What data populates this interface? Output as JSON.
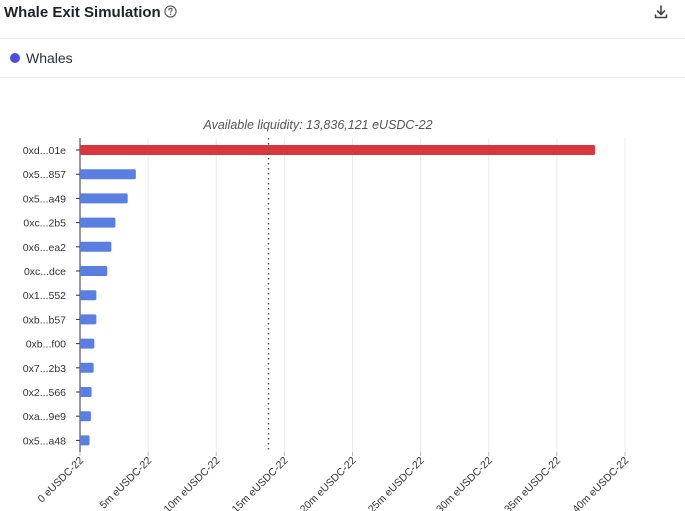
{
  "header": {
    "title": "Whale Exit Simulation",
    "help_icon": "question-circle-icon",
    "download_icon": "download-icon"
  },
  "legend": {
    "label": "Whales",
    "color": "#4a4fe0"
  },
  "colors": {
    "bar": "#5b7fe0",
    "highlight_bar": "#d9373e",
    "liquidity_line": "#555555",
    "grid": "#ececec"
  },
  "chart_data": {
    "type": "bar",
    "orientation": "horizontal",
    "annotation": "Available liquidity: 13,836,121 eUSDC-22",
    "liquidity_value": 13836121,
    "categories": [
      "0xd...01e",
      "0x5...857",
      "0x5...a49",
      "0xc...2b5",
      "0x6...ea2",
      "0xc...dce",
      "0x1...552",
      "0xb...b57",
      "0xb...f00",
      "0x7...2b3",
      "0x2...566",
      "0xa...9e9",
      "0x5...a48"
    ],
    "series": [
      {
        "name": "Whales",
        "values": [
          37800000,
          4100000,
          3500000,
          2600000,
          2300000,
          2000000,
          1200000,
          1200000,
          1050000,
          1000000,
          850000,
          800000,
          700000
        ]
      }
    ],
    "highlight_index": 0,
    "xlim": [
      0,
      40000000
    ],
    "xticks": [
      0,
      5000000,
      10000000,
      15000000,
      20000000,
      25000000,
      30000000,
      35000000,
      40000000
    ],
    "xtick_labels": [
      "0 eUSDC-22",
      "5m eUSDC-22",
      "10m eUSDC-22",
      "15m eUSDC-22",
      "20m eUSDC-22",
      "25m eUSDC-22",
      "30m eUSDC-22",
      "35m eUSDC-22",
      "40m eUSDC-22"
    ],
    "grid": true,
    "legend_position": "top-left"
  }
}
